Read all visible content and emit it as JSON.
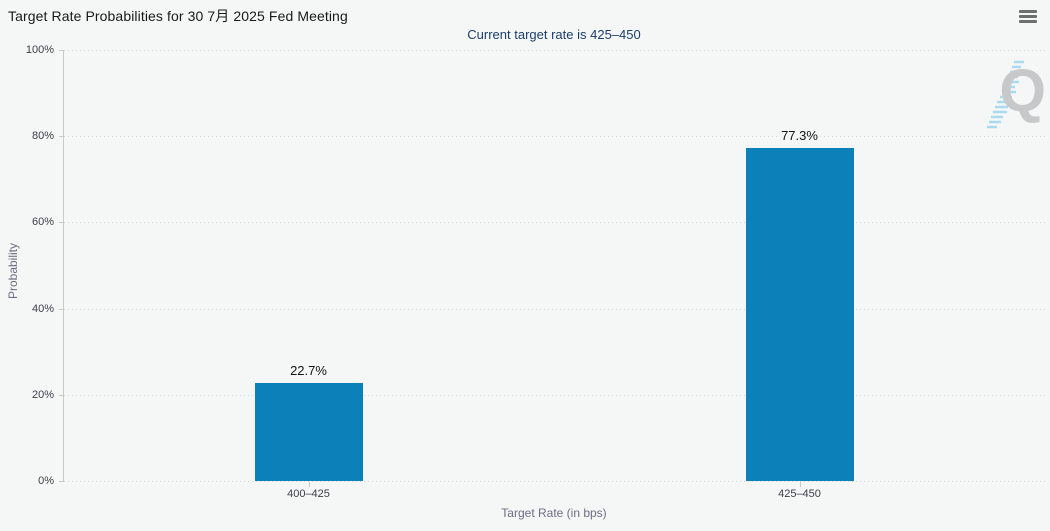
{
  "header": {
    "title": "Target Rate Probabilities for 30 7月 2025 Fed Meeting"
  },
  "subtitle": "Current target rate is 425–450",
  "watermark_letter": "Q",
  "colors": {
    "background": "#f5f6f6",
    "bar": "#0c80b9",
    "subtitle": "#1c3e6d",
    "grid": "#d5d5d9",
    "axis": "#c9c9c9",
    "axis_title": "#6b6e84",
    "tick_label": "#3e3e4a",
    "watermark_q": "#c6c8ca",
    "watermark_slash": "#a8daf0"
  },
  "chart_data": {
    "type": "bar",
    "title": "Target Rate Probabilities for 30 7月 2025 Fed Meeting",
    "subtitle": "Current target rate is 425–450",
    "categories": [
      "400–425",
      "425–450"
    ],
    "values": [
      22.7,
      77.3
    ],
    "value_labels": [
      "22.7%",
      "77.3%"
    ],
    "xlabel": "Target Rate (in bps)",
    "ylabel": "Probability",
    "ylim": [
      0,
      100
    ],
    "yticks": [
      0,
      20,
      40,
      60,
      80,
      100
    ],
    "ytick_labels": [
      "0%",
      "20%",
      "40%",
      "60%",
      "80%",
      "100%"
    ],
    "grid": "horizontal-dotted",
    "legend": "none"
  }
}
